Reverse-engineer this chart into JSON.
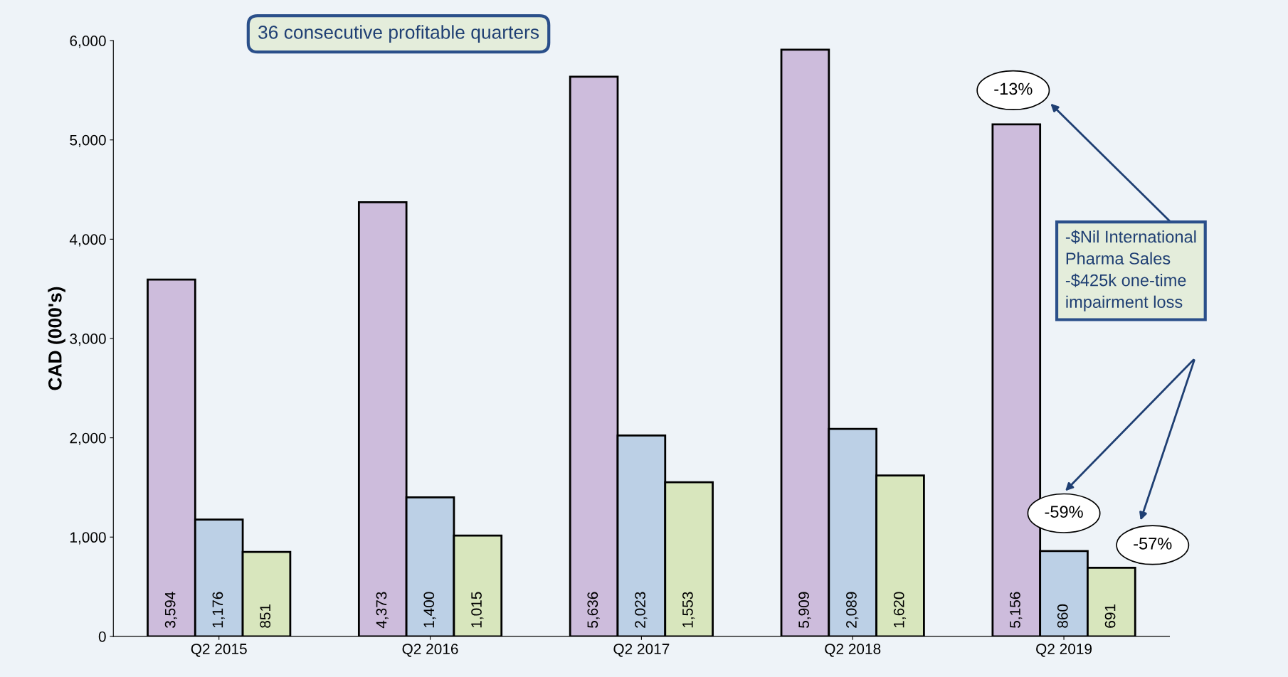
{
  "chart_data": {
    "type": "bar",
    "ylabel": "CAD (000's)",
    "categories": [
      "Q2 2015",
      "Q2 2016",
      "Q2 2017",
      "Q2 2018",
      "Q2 2019"
    ],
    "series": [
      {
        "color": "#cdbcdc",
        "values": [
          3594,
          4373,
          5636,
          5909,
          5156
        ],
        "value_labels": [
          "3,594",
          "4,373",
          "5,636",
          "5,909",
          "5,156"
        ]
      },
      {
        "color": "#bcd0e6",
        "values": [
          1176,
          1400,
          2023,
          2089,
          860
        ],
        "value_labels": [
          "1,176",
          "1,400",
          "2,023",
          "2,089",
          "860"
        ]
      },
      {
        "color": "#d8e6bd",
        "values": [
          851,
          1015,
          1553,
          1620,
          691
        ],
        "value_labels": [
          "851",
          "1,015",
          "1,553",
          "1,620",
          "691"
        ]
      }
    ],
    "ylim": [
      0,
      6000
    ],
    "yticks": [
      {
        "value": 0,
        "label": "0"
      },
      {
        "value": 1000,
        "label": "1,000"
      },
      {
        "value": 2000,
        "label": "2,000"
      },
      {
        "value": 3000,
        "label": "3,000"
      },
      {
        "value": 4000,
        "label": "4,000"
      },
      {
        "value": 5000,
        "label": "5,000"
      },
      {
        "value": 6000,
        "label": "6,000"
      }
    ],
    "grid": false,
    "annotations": [
      "36 consecutive profitable quarters",
      "-13%",
      "-59%",
      "-57%",
      "-$Nil International\nPharma Sales\n-$425k one-time\nimpairment loss"
    ]
  }
}
